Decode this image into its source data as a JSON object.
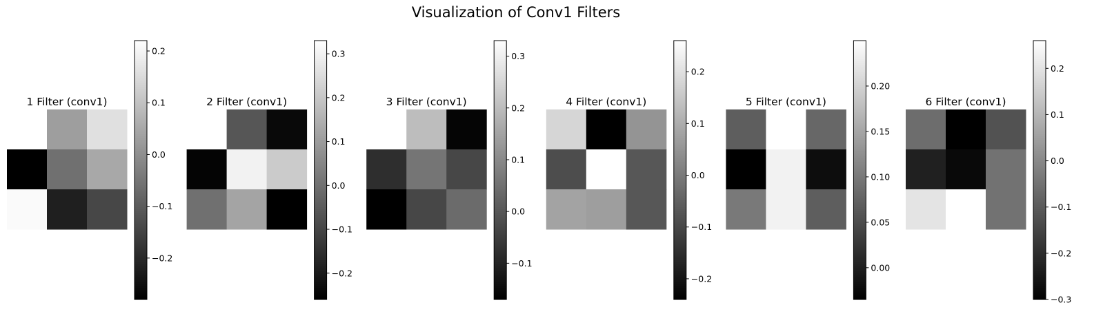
{
  "figure": {
    "title": "Visualization of Conv1 Filters"
  },
  "chart_data": [
    {
      "type": "heatmap",
      "title": "1 Filter (conv1)",
      "colormap": "gray",
      "axis": "off",
      "values": [
        [
          0.22,
          0.03,
          0.16
        ],
        [
          -0.28,
          -0.06,
          0.05
        ],
        [
          0.21,
          -0.22,
          -0.14
        ]
      ],
      "clim": [
        -0.28,
        0.22
      ],
      "colorbar_ticks": [
        -0.2,
        -0.1,
        0.0,
        0.1,
        0.2
      ],
      "colorbar_tick_labels": [
        "−0.2",
        "−0.1",
        "0.0",
        "0.1",
        "0.2"
      ]
    },
    {
      "type": "heatmap",
      "title": "2 Filter (conv1)",
      "colormap": "gray",
      "axis": "off",
      "values": [
        [
          0.33,
          -0.06,
          -0.24
        ],
        [
          -0.25,
          0.3,
          0.21
        ],
        [
          0.0,
          0.12,
          -0.26
        ]
      ],
      "clim": [
        -0.26,
        0.33
      ],
      "colorbar_ticks": [
        -0.2,
        -0.1,
        0.0,
        0.1,
        0.2,
        0.3
      ],
      "colorbar_tick_labels": [
        "−0.2",
        "−0.1",
        "0.0",
        "0.1",
        "0.2",
        "0.3"
      ]
    },
    {
      "type": "heatmap",
      "title": "3 Filter (conv1)",
      "colormap": "gray",
      "axis": "off",
      "values": [
        [
          0.33,
          0.2,
          -0.16
        ],
        [
          -0.08,
          0.06,
          -0.03
        ],
        [
          -0.17,
          -0.03,
          0.04
        ]
      ],
      "clim": [
        -0.17,
        0.33
      ],
      "colorbar_ticks": [
        -0.1,
        0.0,
        0.1,
        0.2,
        0.3
      ],
      "colorbar_tick_labels": [
        "−0.1",
        "0.0",
        "0.1",
        "0.2",
        "0.3"
      ]
    },
    {
      "type": "heatmap",
      "title": "4 Filter (conv1)",
      "colormap": "gray",
      "axis": "off",
      "values": [
        [
          0.18,
          -0.24,
          0.05
        ],
        [
          -0.09,
          0.26,
          -0.07
        ],
        [
          0.08,
          0.07,
          -0.07
        ]
      ],
      "clim": [
        -0.24,
        0.26
      ],
      "colorbar_ticks": [
        -0.2,
        -0.1,
        0.0,
        0.1,
        0.2
      ],
      "colorbar_tick_labels": [
        "−0.2",
        "−0.1",
        "0.0",
        "0.1",
        "0.2"
      ]
    },
    {
      "type": "heatmap",
      "title": "5 Filter (conv1)",
      "colormap": "gray",
      "axis": "off",
      "values": [
        [
          0.07,
          0.25,
          0.08
        ],
        [
          -0.035,
          0.235,
          -0.02
        ],
        [
          0.1,
          0.235,
          0.07
        ]
      ],
      "clim": [
        -0.035,
        0.25
      ],
      "colorbar_ticks": [
        0.0,
        0.05,
        0.1,
        0.15,
        0.2
      ],
      "colorbar_tick_labels": [
        "0.00",
        "0.05",
        "0.10",
        "0.15",
        "0.20"
      ]
    },
    {
      "type": "heatmap",
      "title": "6 Filter (conv1)",
      "colormap": "gray",
      "axis": "off",
      "values": [
        [
          -0.06,
          -0.3,
          -0.12
        ],
        [
          -0.23,
          -0.28,
          -0.05
        ],
        [
          0.2,
          0.26,
          -0.05
        ]
      ],
      "clim": [
        -0.3,
        0.26
      ],
      "colorbar_ticks": [
        -0.3,
        -0.2,
        -0.1,
        0.0,
        0.1,
        0.2
      ],
      "colorbar_tick_labels": [
        "−0.3",
        "−0.2",
        "−0.1",
        "0.0",
        "0.1",
        "0.2"
      ]
    }
  ]
}
